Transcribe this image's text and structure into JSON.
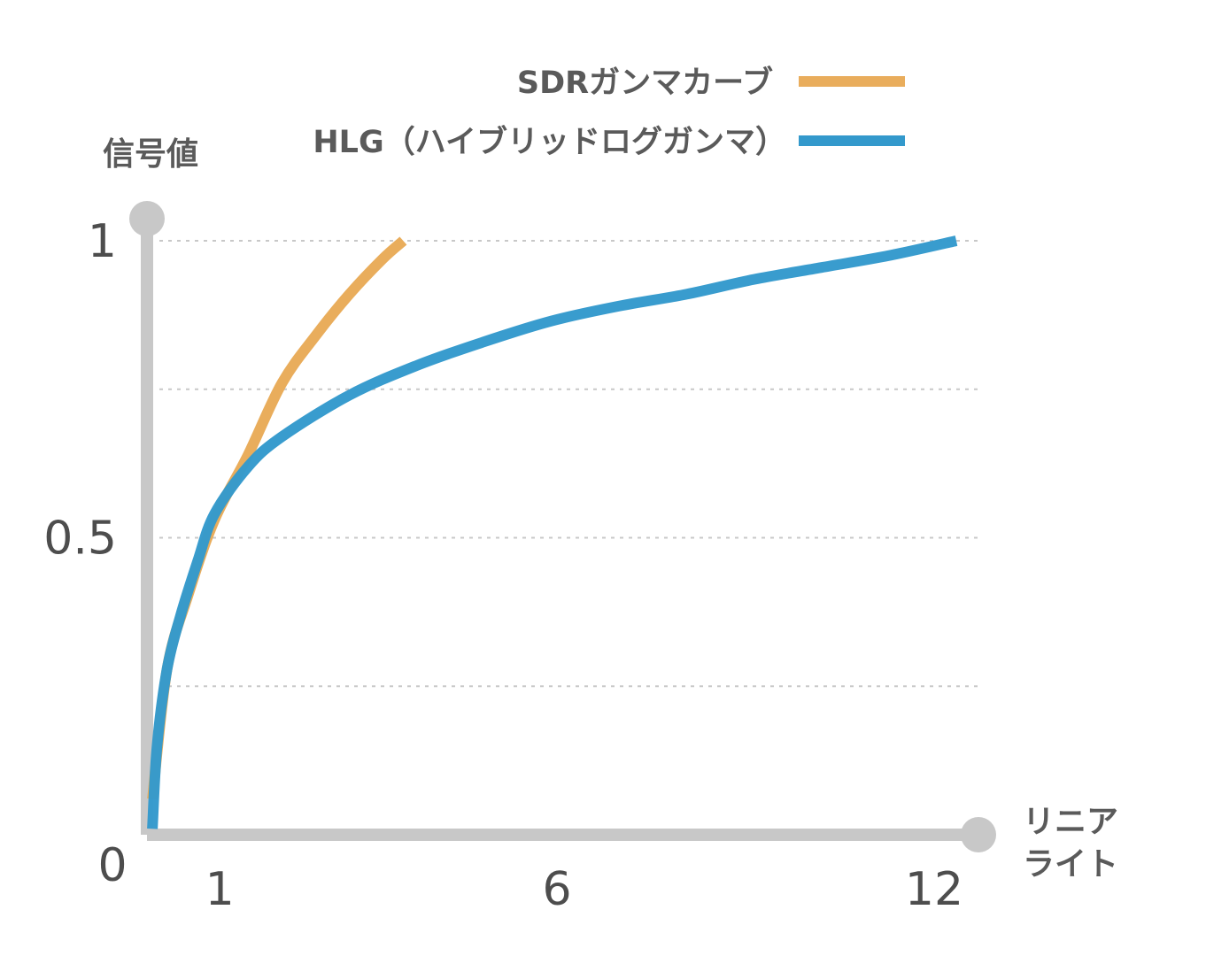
{
  "chart_data": {
    "type": "line",
    "xlabel": [
      "リニア",
      "ライト"
    ],
    "ylabel": "信号値",
    "xlim": [
      0,
      12
    ],
    "ylim": [
      0,
      1
    ],
    "x_ticks": [
      {
        "value": 1,
        "label": "1"
      },
      {
        "value": 6,
        "label": "6"
      },
      {
        "value": 12,
        "label": "12"
      }
    ],
    "y_ticks": [
      {
        "value": 0,
        "label": "0"
      },
      {
        "value": 0.5,
        "label": "0.5"
      },
      {
        "value": 1,
        "label": "1"
      }
    ],
    "grid_y": [
      0.25,
      0.5,
      0.75,
      1
    ],
    "legend_position": "top-right",
    "colors": {
      "axis": "#c8c8c8",
      "grid": "#c8c8c8",
      "text": "#4d4d4d"
    },
    "series": [
      {
        "name": "SDRガンマカーブ",
        "color": "#e9ad5c",
        "x": [
          0.08,
          0.3,
          0.6,
          1,
          1.5,
          2,
          2.5,
          3,
          3.5,
          3.8
        ],
        "y": [
          0.06,
          0.28,
          0.4,
          0.53,
          0.64,
          0.76,
          0.84,
          0.91,
          0.97,
          1.0
        ]
      },
      {
        "name": "HLG（ハイブリッドログガンマ）",
        "color": "#3399cc",
        "x": [
          0.08,
          0.15,
          0.3,
          0.5,
          0.75,
          1,
          1.5,
          2,
          3,
          4,
          5,
          6,
          7,
          8,
          9,
          10,
          11,
          12
        ],
        "y": [
          0.01,
          0.15,
          0.28,
          0.37,
          0.46,
          0.54,
          0.62,
          0.67,
          0.74,
          0.79,
          0.83,
          0.865,
          0.89,
          0.91,
          0.935,
          0.955,
          0.975,
          1.0
        ]
      }
    ]
  }
}
